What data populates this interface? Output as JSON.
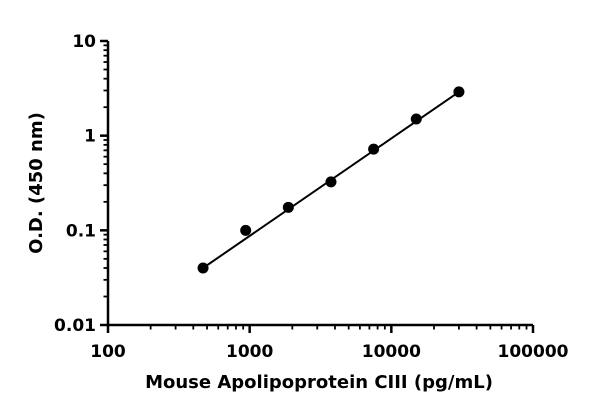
{
  "chart_data": {
    "type": "scatter",
    "title": "",
    "xlabel": "Mouse Apolipoprotein CIII (pg/mL)",
    "ylabel": "O.D. (450 nm)",
    "xscale": "log",
    "yscale": "log",
    "xlim": [
      100,
      100000
    ],
    "ylim": [
      0.01,
      10
    ],
    "xticks": [
      "100",
      "1000",
      "10000",
      "100000"
    ],
    "yticks": [
      "0.01",
      "0.1",
      "1",
      "10"
    ],
    "grid": false,
    "legend": "none",
    "series": [
      {
        "x": [
          468.75,
          937.5,
          1875,
          3750,
          7500,
          15000,
          30000
        ],
        "y": [
          0.04,
          0.1,
          0.175,
          0.325,
          0.72,
          1.5,
          2.9
        ]
      }
    ],
    "fit_line": {
      "x": [
        468.75,
        30000
      ],
      "y": [
        0.04,
        2.9
      ]
    },
    "colors": {
      "marker": "#000000",
      "axis": "#000000",
      "line": "#000000"
    }
  }
}
